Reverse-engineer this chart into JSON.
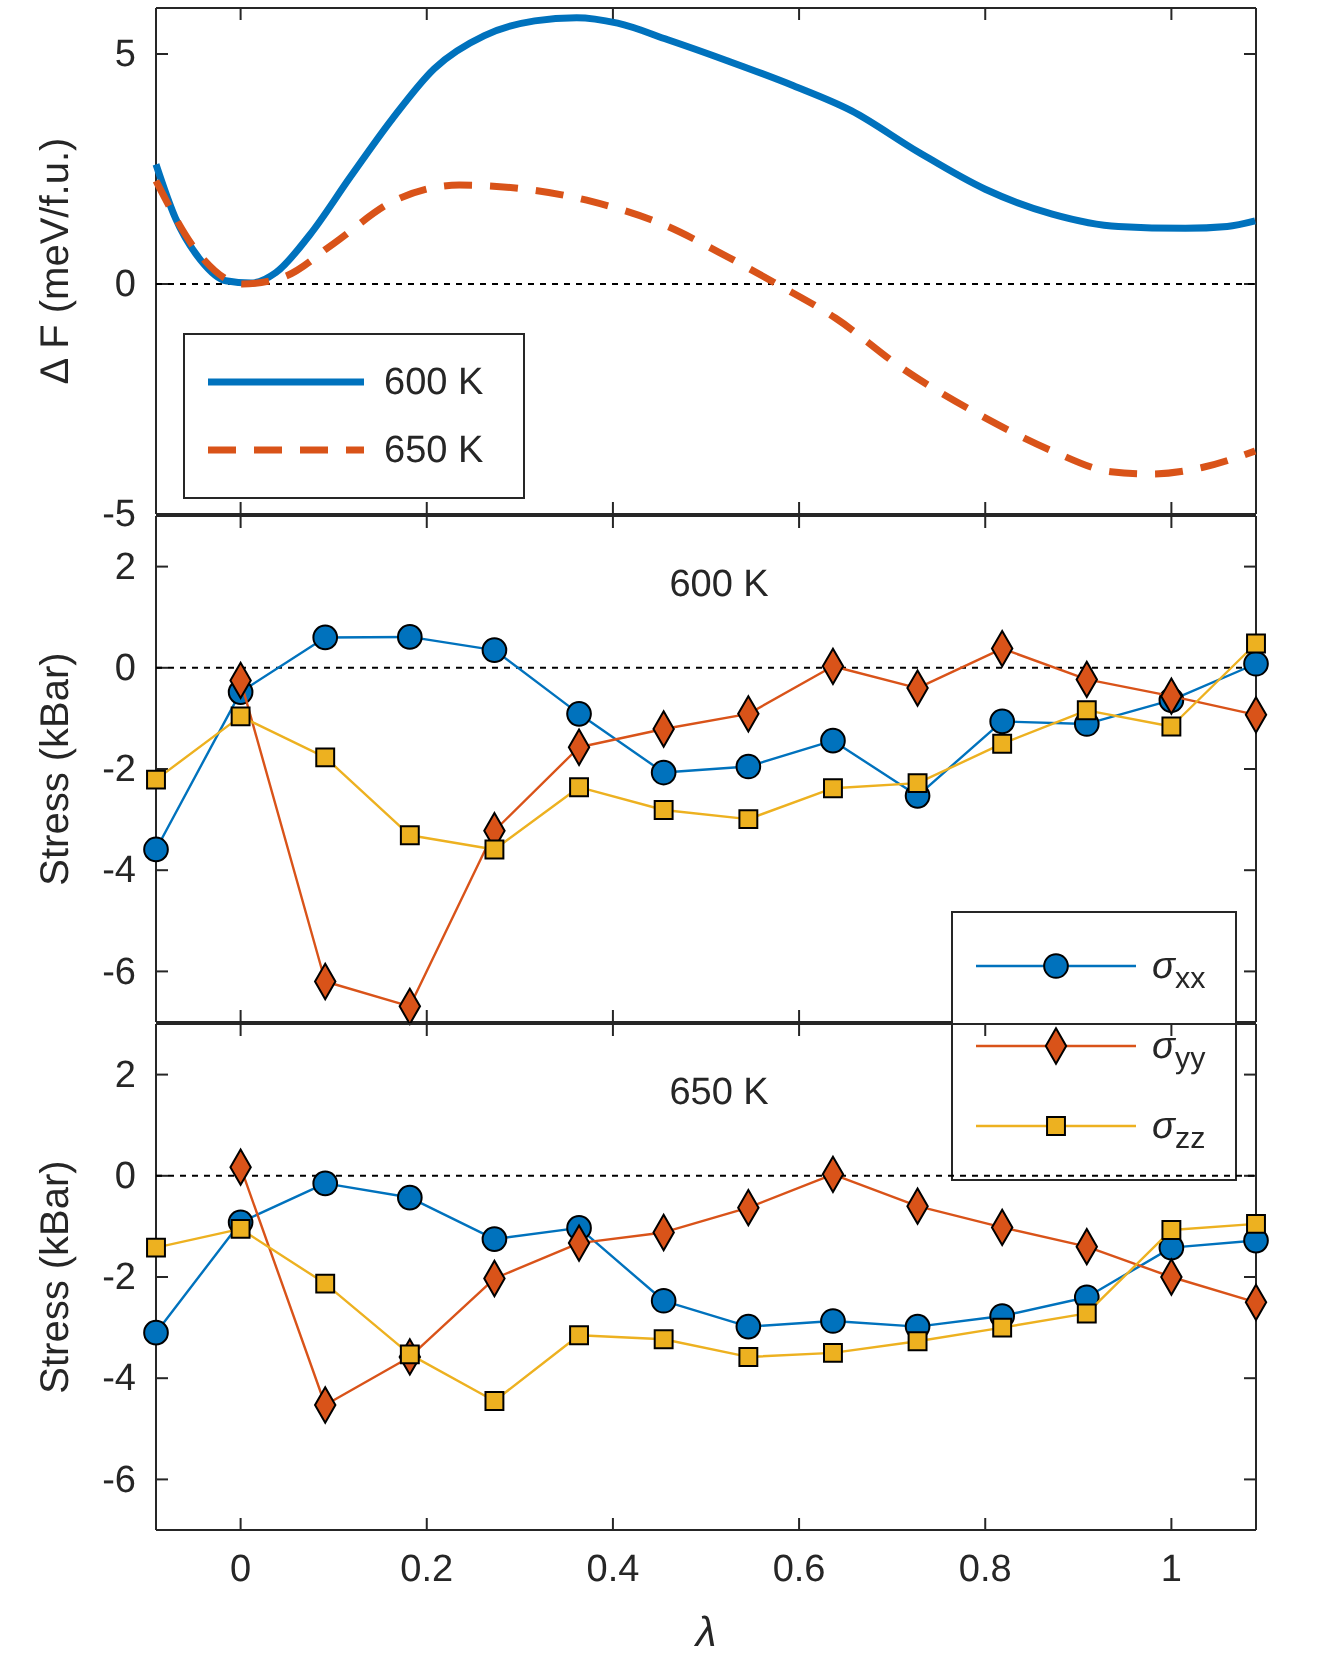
{
  "chart_data": [
    {
      "type": "line",
      "ylabel": "Δ F (meV/f.u.)",
      "xlim": [
        -0.0909,
        1.0909
      ],
      "xticks": [
        0,
        0.2,
        0.4,
        0.6,
        0.8,
        1
      ],
      "ylim": [
        -5,
        6
      ],
      "yticks": [
        -5,
        0,
        5
      ],
      "tick_labels": "y",
      "legend": "bottom left",
      "marker": "none",
      "grid": false,
      "ref_lines": [
        {
          "axis": "y",
          "value": 0,
          "color": "#000000",
          "line_style": "dotted"
        }
      ],
      "series": [
        {
          "name": "600 K",
          "color": "#0072bd",
          "line_style": "solid",
          "x": [
            -0.0909,
            -0.07,
            -0.043,
            -0.016,
            0.011,
            0.038,
            0.074,
            0.118,
            0.163,
            0.208,
            0.262,
            0.316,
            0.361,
            0.405,
            0.459,
            0.522,
            0.594,
            0.656,
            0.728,
            0.8,
            0.872,
            0.943,
            1.015,
            1.06,
            1.09
          ],
          "values": [
            2.6,
            1.43,
            0.52,
            0.07,
            0.02,
            0.25,
            1.06,
            2.33,
            3.59,
            4.68,
            5.4,
            5.72,
            5.79,
            5.67,
            5.31,
            4.86,
            4.31,
            3.77,
            2.87,
            2.06,
            1.52,
            1.25,
            1.21,
            1.25,
            1.37
          ]
        },
        {
          "name": "650 K",
          "color": "#d95319",
          "line_style": "dashed",
          "x": [
            -0.0909,
            -0.043,
            0.002,
            0.047,
            0.1,
            0.163,
            0.235,
            0.307,
            0.378,
            0.459,
            0.513,
            0.576,
            0.639,
            0.71,
            0.8,
            0.872,
            0.935,
            0.979,
            1.033,
            1.09
          ],
          "values": [
            2.24,
            0.61,
            0,
            0.16,
            0.88,
            1.79,
            2.15,
            2.06,
            1.79,
            1.25,
            0.7,
            0,
            -0.74,
            -1.82,
            -2.91,
            -3.63,
            -4.08,
            -4.13,
            -3.99,
            -3.63
          ]
        }
      ]
    },
    {
      "type": "line",
      "title": "600 K",
      "ylabel": "Stress (kBar)",
      "x": [
        -0.0909,
        0,
        0.0909,
        0.1818,
        0.2727,
        0.3636,
        0.4545,
        0.5455,
        0.6364,
        0.7273,
        0.8182,
        0.9091,
        1,
        1.0909
      ],
      "xlim": [
        -0.0909,
        1.0909
      ],
      "xticks": [
        0,
        0.2,
        0.4,
        0.6,
        0.8,
        1
      ],
      "ylim": [
        -7,
        3
      ],
      "yticks": [
        -6,
        -4,
        -2,
        0,
        2
      ],
      "tick_labels": "y",
      "legend": "bottom right",
      "grid": false,
      "ref_lines": [
        {
          "axis": "y",
          "value": 0,
          "color": "#000000",
          "line_style": "dotted"
        }
      ],
      "series": [
        {
          "name": "σ$_{xx}$",
          "color": "#0072bd",
          "marker": "circle",
          "values": [
            -3.59,
            -0.48,
            0.6,
            0.61,
            0.35,
            -0.91,
            -2.07,
            -1.95,
            -1.44,
            -2.53,
            -1.06,
            -1.11,
            -0.64,
            0.08
          ]
        },
        {
          "name": "σ$_{yy}$",
          "color": "#d95319",
          "marker": "diamond",
          "values": [
            null,
            -0.25,
            -6.2,
            -6.69,
            -3.22,
            -1.57,
            -1.21,
            -0.91,
            0.03,
            -0.4,
            0.38,
            -0.23,
            -0.56,
            -0.93
          ]
        },
        {
          "name": "σ$_{zz}$",
          "color": "#edb120",
          "marker": "square",
          "values": [
            -2.21,
            -0.96,
            -1.77,
            -3.31,
            -3.59,
            -2.36,
            -2.81,
            -2.99,
            -2.38,
            -2.28,
            -1.5,
            -0.84,
            -1.16,
            0.48
          ]
        }
      ]
    },
    {
      "type": "line",
      "title": "650 K",
      "ylabel": "Stress (kBar)",
      "xlabel": "λ",
      "x": [
        -0.0909,
        0,
        0.0909,
        0.1818,
        0.2727,
        0.3636,
        0.4545,
        0.5455,
        0.6364,
        0.7273,
        0.8182,
        0.9091,
        1,
        1.0909
      ],
      "xlim": [
        -0.0909,
        1.0909
      ],
      "xticks": [
        0,
        0.2,
        0.4,
        0.6,
        0.8,
        1
      ],
      "ylim": [
        -7,
        3
      ],
      "yticks": [
        -6,
        -4,
        -2,
        0,
        2
      ],
      "grid": false,
      "ref_lines": [
        {
          "axis": "y",
          "value": 0,
          "color": "#000000",
          "line_style": "dotted"
        }
      ],
      "series": [
        {
          "color": "#0072bd",
          "marker": "circle",
          "values": [
            -3.1,
            -0.92,
            -0.15,
            -0.43,
            -1.25,
            -1.03,
            -2.47,
            -2.98,
            -2.87,
            -2.98,
            -2.77,
            -2.4,
            -1.42,
            -1.28
          ]
        },
        {
          "color": "#d95319",
          "marker": "diamond",
          "values": [
            null,
            0.17,
            -4.53,
            -3.58,
            -2.03,
            -1.33,
            -1.12,
            -0.63,
            0.03,
            -0.6,
            -1.02,
            -1.4,
            -2.0,
            -2.5
          ]
        },
        {
          "color": "#edb120",
          "marker": "square",
          "values": [
            -1.42,
            -1.05,
            -2.13,
            -3.53,
            -4.45,
            -3.15,
            -3.23,
            -3.58,
            -3.5,
            -3.27,
            -3.0,
            -2.72,
            -1.07,
            -0.95
          ]
        }
      ]
    }
  ]
}
